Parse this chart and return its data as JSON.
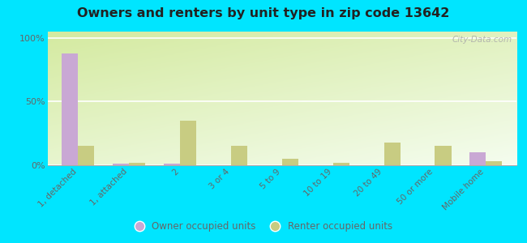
{
  "title": "Owners and renters by unit type in zip code 13642",
  "categories": [
    "1, detached",
    "1, attached",
    "2",
    "3 or 4",
    "5 to 9",
    "10 to 19",
    "20 to 49",
    "50 or more",
    "Mobile home"
  ],
  "owner_values": [
    88,
    1,
    1,
    0,
    0,
    0,
    0,
    0,
    10
  ],
  "renter_values": [
    15,
    2,
    35,
    15,
    5,
    2,
    18,
    15,
    3
  ],
  "owner_color": "#c9a8d4",
  "renter_color": "#c8cc82",
  "outer_background": "#00e5ff",
  "yticks": [
    0,
    50,
    100
  ],
  "ylabels": [
    "0%",
    "50%",
    "100%"
  ],
  "ylim": [
    0,
    105
  ],
  "watermark": "City-Data.com",
  "legend_owner": "Owner occupied units",
  "legend_renter": "Renter occupied units",
  "bg_colors": [
    "#c8dea0",
    "#f0f8e8"
  ],
  "title_color": "#222222",
  "tick_color": "#666666",
  "bar_width": 0.32
}
